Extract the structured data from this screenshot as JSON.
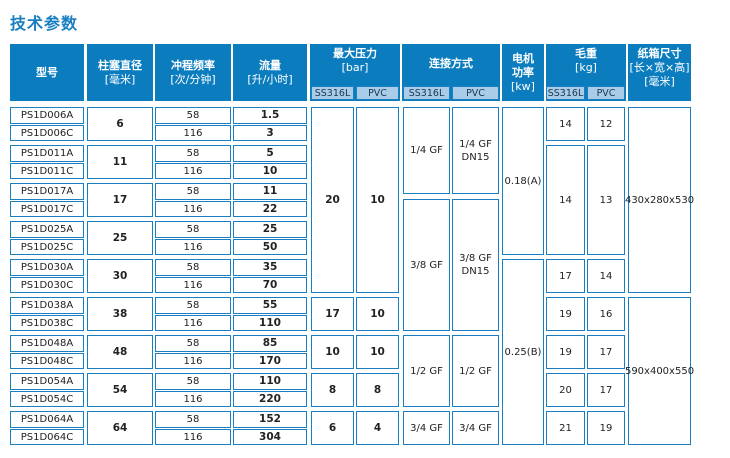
{
  "title": "技术参数",
  "headers": {
    "model": "型号",
    "diameter": "柱塞直径",
    "diameter_unit": "[毫米]",
    "stroke": "冲程频率",
    "stroke_unit": "[次/分钟]",
    "flow": "流量",
    "flow_unit": "[升/小时]",
    "pressure": "最大压力",
    "pressure_unit": "[bar]",
    "connection": "连接方式",
    "motor": "电机\n功率",
    "motor_unit": "[kw]",
    "weight": "毛重",
    "weight_unit": "[kg]",
    "carton": "纸箱尺寸",
    "carton_unit": "[长×宽×高]",
    "carton_unit2": "[毫米]",
    "ss316l": "SS316L",
    "pvc": "PVC"
  },
  "models": [
    {
      "a": "PS1D006A",
      "c": "PS1D006C",
      "diameter": "6",
      "freq_a": "58",
      "freq_c": "116",
      "flow_a": "1.5",
      "flow_c": "3"
    },
    {
      "a": "PS1D011A",
      "c": "PS1D011C",
      "diameter": "11",
      "freq_a": "58",
      "freq_c": "116",
      "flow_a": "5",
      "flow_c": "10"
    },
    {
      "a": "PS1D017A",
      "c": "PS1D017C",
      "diameter": "17",
      "freq_a": "58",
      "freq_c": "116",
      "flow_a": "11",
      "flow_c": "22"
    },
    {
      "a": "PS1D025A",
      "c": "PS1D025C",
      "diameter": "25",
      "freq_a": "58",
      "freq_c": "116",
      "flow_a": "25",
      "flow_c": "50"
    },
    {
      "a": "PS1D030A",
      "c": "PS1D030C",
      "diameter": "30",
      "freq_a": "58",
      "freq_c": "116",
      "flow_a": "35",
      "flow_c": "70"
    },
    {
      "a": "PS1D038A",
      "c": "PS1D038C",
      "diameter": "38",
      "freq_a": "58",
      "freq_c": "116",
      "flow_a": "55",
      "flow_c": "110"
    },
    {
      "a": "PS1D048A",
      "c": "PS1D048C",
      "diameter": "48",
      "freq_a": "58",
      "freq_c": "116",
      "flow_a": "85",
      "flow_c": "170"
    },
    {
      "a": "PS1D054A",
      "c": "PS1D054C",
      "diameter": "54",
      "freq_a": "58",
      "freq_c": "116",
      "flow_a": "110",
      "flow_c": "220"
    },
    {
      "a": "PS1D064A",
      "c": "PS1D064C",
      "diameter": "64",
      "freq_a": "58",
      "freq_c": "116",
      "flow_a": "152",
      "flow_c": "304"
    }
  ],
  "pressure": [
    {
      "ss": "20",
      "pvc": "10"
    },
    {
      "ss": "17",
      "pvc": "10"
    },
    {
      "ss": "10",
      "pvc": "10"
    },
    {
      "ss": "8",
      "pvc": "8"
    },
    {
      "ss": "6",
      "pvc": "4"
    }
  ],
  "connection": [
    {
      "ss": "1/4 GF",
      "pvc": "1/4 GF\nDN15"
    },
    {
      "ss": "3/8 GF",
      "pvc": "3/8 GF\nDN15"
    },
    {
      "ss": "1/2 GF",
      "pvc": "1/2 GF"
    },
    {
      "ss": "3/4 GF",
      "pvc": "3/4 GF"
    }
  ],
  "motor": [
    "0.18(A)",
    "0.25(B)"
  ],
  "weight": [
    {
      "ss": "14",
      "pvc": "12"
    },
    {
      "ss": "14",
      "pvc": "13"
    },
    {
      "ss": "17",
      "pvc": "14"
    },
    {
      "ss": "19",
      "pvc": "16"
    },
    {
      "ss": "19",
      "pvc": "17"
    },
    {
      "ss": "20",
      "pvc": "17"
    },
    {
      "ss": "21",
      "pvc": "19"
    }
  ],
  "carton": [
    "430x280x530",
    "590x400x550"
  ]
}
